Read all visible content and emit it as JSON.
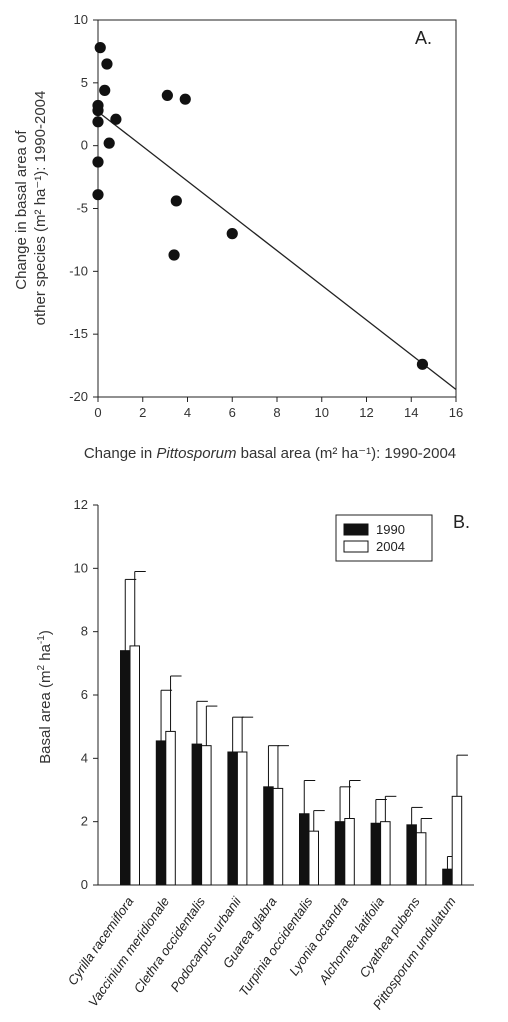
{
  "chart_data": [
    {
      "type": "scatter",
      "panel_label": "A.",
      "ylabel_line1": "Change in basal area of",
      "ylabel_line2": "other species (m² ha⁻¹): 1990-2004",
      "xlabel_prefix": "Change in ",
      "xlabel_italic": "Pittosporum",
      "xlabel_suffix": " basal area (m² ha⁻¹): 1990-2004",
      "xlim": [
        0,
        16
      ],
      "ylim": [
        -20,
        10
      ],
      "xticks": [
        0,
        2,
        4,
        6,
        8,
        10,
        12,
        14,
        16
      ],
      "yticks": [
        -20,
        -15,
        -10,
        -5,
        0,
        5,
        10
      ],
      "points": [
        {
          "x": 0.1,
          "y": 7.8
        },
        {
          "x": 0.4,
          "y": 6.5
        },
        {
          "x": 0.3,
          "y": 4.4
        },
        {
          "x": 0.0,
          "y": 3.2
        },
        {
          "x": 0.0,
          "y": 2.8
        },
        {
          "x": 0.0,
          "y": 1.9
        },
        {
          "x": 0.8,
          "y": 2.1
        },
        {
          "x": 0.5,
          "y": 0.2
        },
        {
          "x": 0.0,
          "y": -1.3
        },
        {
          "x": 0.0,
          "y": -3.9
        },
        {
          "x": 3.1,
          "y": 4.0
        },
        {
          "x": 3.9,
          "y": 3.7
        },
        {
          "x": 3.5,
          "y": -4.4
        },
        {
          "x": 3.4,
          "y": -8.7
        },
        {
          "x": 6.0,
          "y": -7.0
        },
        {
          "x": 14.5,
          "y": -17.4
        }
      ],
      "regression": {
        "x": [
          0,
          16
        ],
        "y": [
          2.7,
          -19.4
        ]
      }
    },
    {
      "type": "bar",
      "panel_label": "B.",
      "ylabel_main": "Basal area (m",
      "ylabel_unit": " ha",
      "ylim": [
        0,
        12
      ],
      "yticks": [
        0,
        2,
        4,
        6,
        8,
        10,
        12
      ],
      "categories": [
        "Cyrilla racemiflora",
        "Vaccinium meridionale",
        "Clethra occidentalis",
        "Podocarpus urbanii",
        "Guarea glabra",
        "Turpinia occidentalis",
        "Lyonia octandra",
        "Alchornea latifolia",
        "Cyathea pubens",
        "Pittosporum undulatum"
      ],
      "series": [
        {
          "name": "1990",
          "color": "#111111",
          "values": [
            7.4,
            4.55,
            4.45,
            4.2,
            3.1,
            2.25,
            2.0,
            1.95,
            1.9,
            0.5
          ],
          "errors": [
            2.25,
            1.6,
            1.35,
            1.1,
            1.3,
            1.05,
            1.1,
            0.75,
            0.55,
            0.4
          ]
        },
        {
          "name": "2004",
          "color": "#ffffff",
          "values": [
            7.55,
            4.85,
            4.4,
            4.2,
            3.05,
            1.7,
            2.1,
            2.0,
            1.65,
            2.8
          ],
          "errors": [
            2.35,
            1.75,
            1.25,
            1.1,
            1.35,
            0.65,
            1.2,
            0.8,
            0.45,
            1.3
          ]
        }
      ]
    }
  ]
}
